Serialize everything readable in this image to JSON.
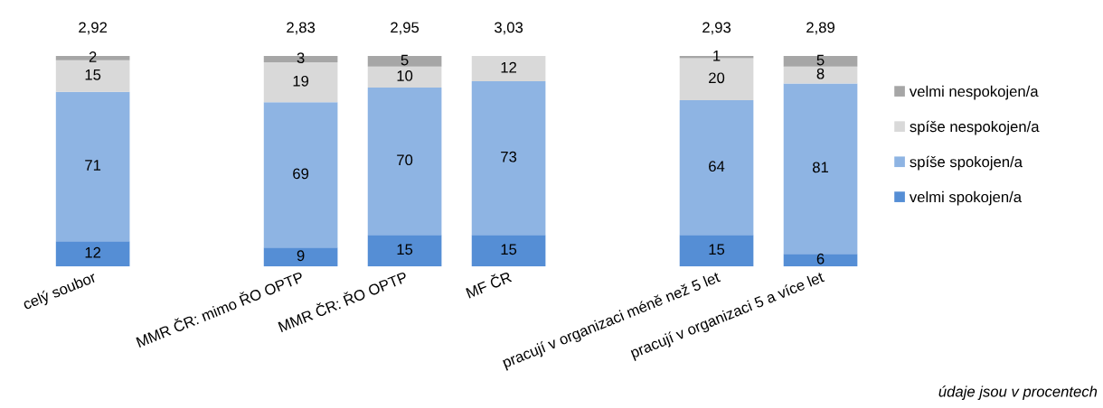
{
  "chart_data": {
    "type": "bar",
    "stacked": true,
    "data_labels": true,
    "legend": "right",
    "grid": false,
    "categories": [
      "celý soubor",
      null,
      "MMR ČR: mimo ŘO OPTP",
      "MMR ČR: ŘO OPTP",
      "MF ČR",
      null,
      "pracují v organizaci méně než 5 let",
      "pracují v organizaci 5 a více let"
    ],
    "series": [
      {
        "name": "velmi spokojen/a",
        "color": "#558ed5",
        "values": [
          12,
          null,
          9,
          15,
          15,
          null,
          15,
          6
        ]
      },
      {
        "name": "spíše spokojen/a",
        "color": "#8eb4e3",
        "values": [
          71,
          null,
          69,
          70,
          73,
          null,
          64,
          81
        ]
      },
      {
        "name": "spíše nespokojen/a",
        "color": "#d9d9d9",
        "values": [
          15,
          null,
          19,
          10,
          12,
          null,
          20,
          8
        ]
      },
      {
        "name": "velmi nespokojen/a",
        "color": "#a6a6a6",
        "values": [
          2,
          null,
          3,
          5,
          null,
          null,
          1,
          5
        ]
      }
    ],
    "annotations": [
      "2,92",
      "2,83",
      "2,95",
      "3,03",
      "2,93",
      "2,89",
      "údaje jsou v procentech"
    ]
  }
}
